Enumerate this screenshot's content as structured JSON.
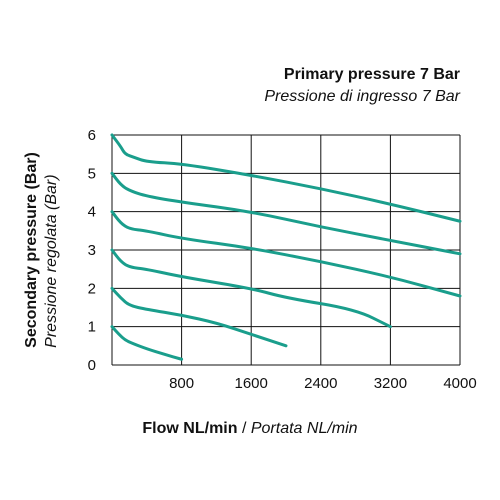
{
  "chart_data": {
    "type": "line",
    "title": "Primary pressure 7 Bar",
    "subtitle": "Pressione di ingresso 7 Bar",
    "xlabel": "Flow NL/min",
    "xlabel_sub": "Portata NL/min",
    "xlabel_separator": "/",
    "ylabel": "Secondary pressure (Bar)",
    "ylabel_sub": "Pressione regolata (Bar)",
    "xlim": [
      0,
      4000
    ],
    "ylim": [
      0,
      6
    ],
    "xticks": [
      "800",
      "1600",
      "2400",
      "3200",
      "4000"
    ],
    "yticks": [
      "0",
      "1",
      "2",
      "3",
      "4",
      "5",
      "6"
    ],
    "grid": true,
    "line_color": "#1a9e8c",
    "series": [
      {
        "x": [
          0,
          80,
          150,
          250,
          400,
          600,
          800
        ],
        "y": [
          1.0,
          0.8,
          0.65,
          0.55,
          0.42,
          0.28,
          0.15
        ]
      },
      {
        "x": [
          0,
          100,
          200,
          400,
          800,
          1200,
          1600,
          2000
        ],
        "y": [
          2.0,
          1.75,
          1.55,
          1.45,
          1.3,
          1.1,
          0.8,
          0.5
        ]
      },
      {
        "x": [
          0,
          100,
          200,
          400,
          800,
          1600,
          2000,
          2800,
          3200
        ],
        "y": [
          3.0,
          2.7,
          2.55,
          2.5,
          2.3,
          2.0,
          1.75,
          1.45,
          1.0
        ]
      },
      {
        "x": [
          0,
          100,
          200,
          400,
          800,
          1600,
          2400,
          3200,
          4000
        ],
        "y": [
          4.0,
          3.7,
          3.55,
          3.5,
          3.3,
          3.05,
          2.7,
          2.3,
          1.8
        ]
      },
      {
        "x": [
          0,
          100,
          200,
          400,
          800,
          1600,
          2400,
          3200,
          4000
        ],
        "y": [
          5.0,
          4.7,
          4.55,
          4.4,
          4.25,
          4.0,
          3.6,
          3.25,
          2.9
        ]
      },
      {
        "x": [
          0,
          100,
          150,
          250,
          400,
          800,
          1600,
          2400,
          3200,
          4000
        ],
        "y": [
          6.0,
          5.7,
          5.5,
          5.42,
          5.3,
          5.25,
          4.95,
          4.6,
          4.2,
          3.75
        ]
      }
    ]
  }
}
